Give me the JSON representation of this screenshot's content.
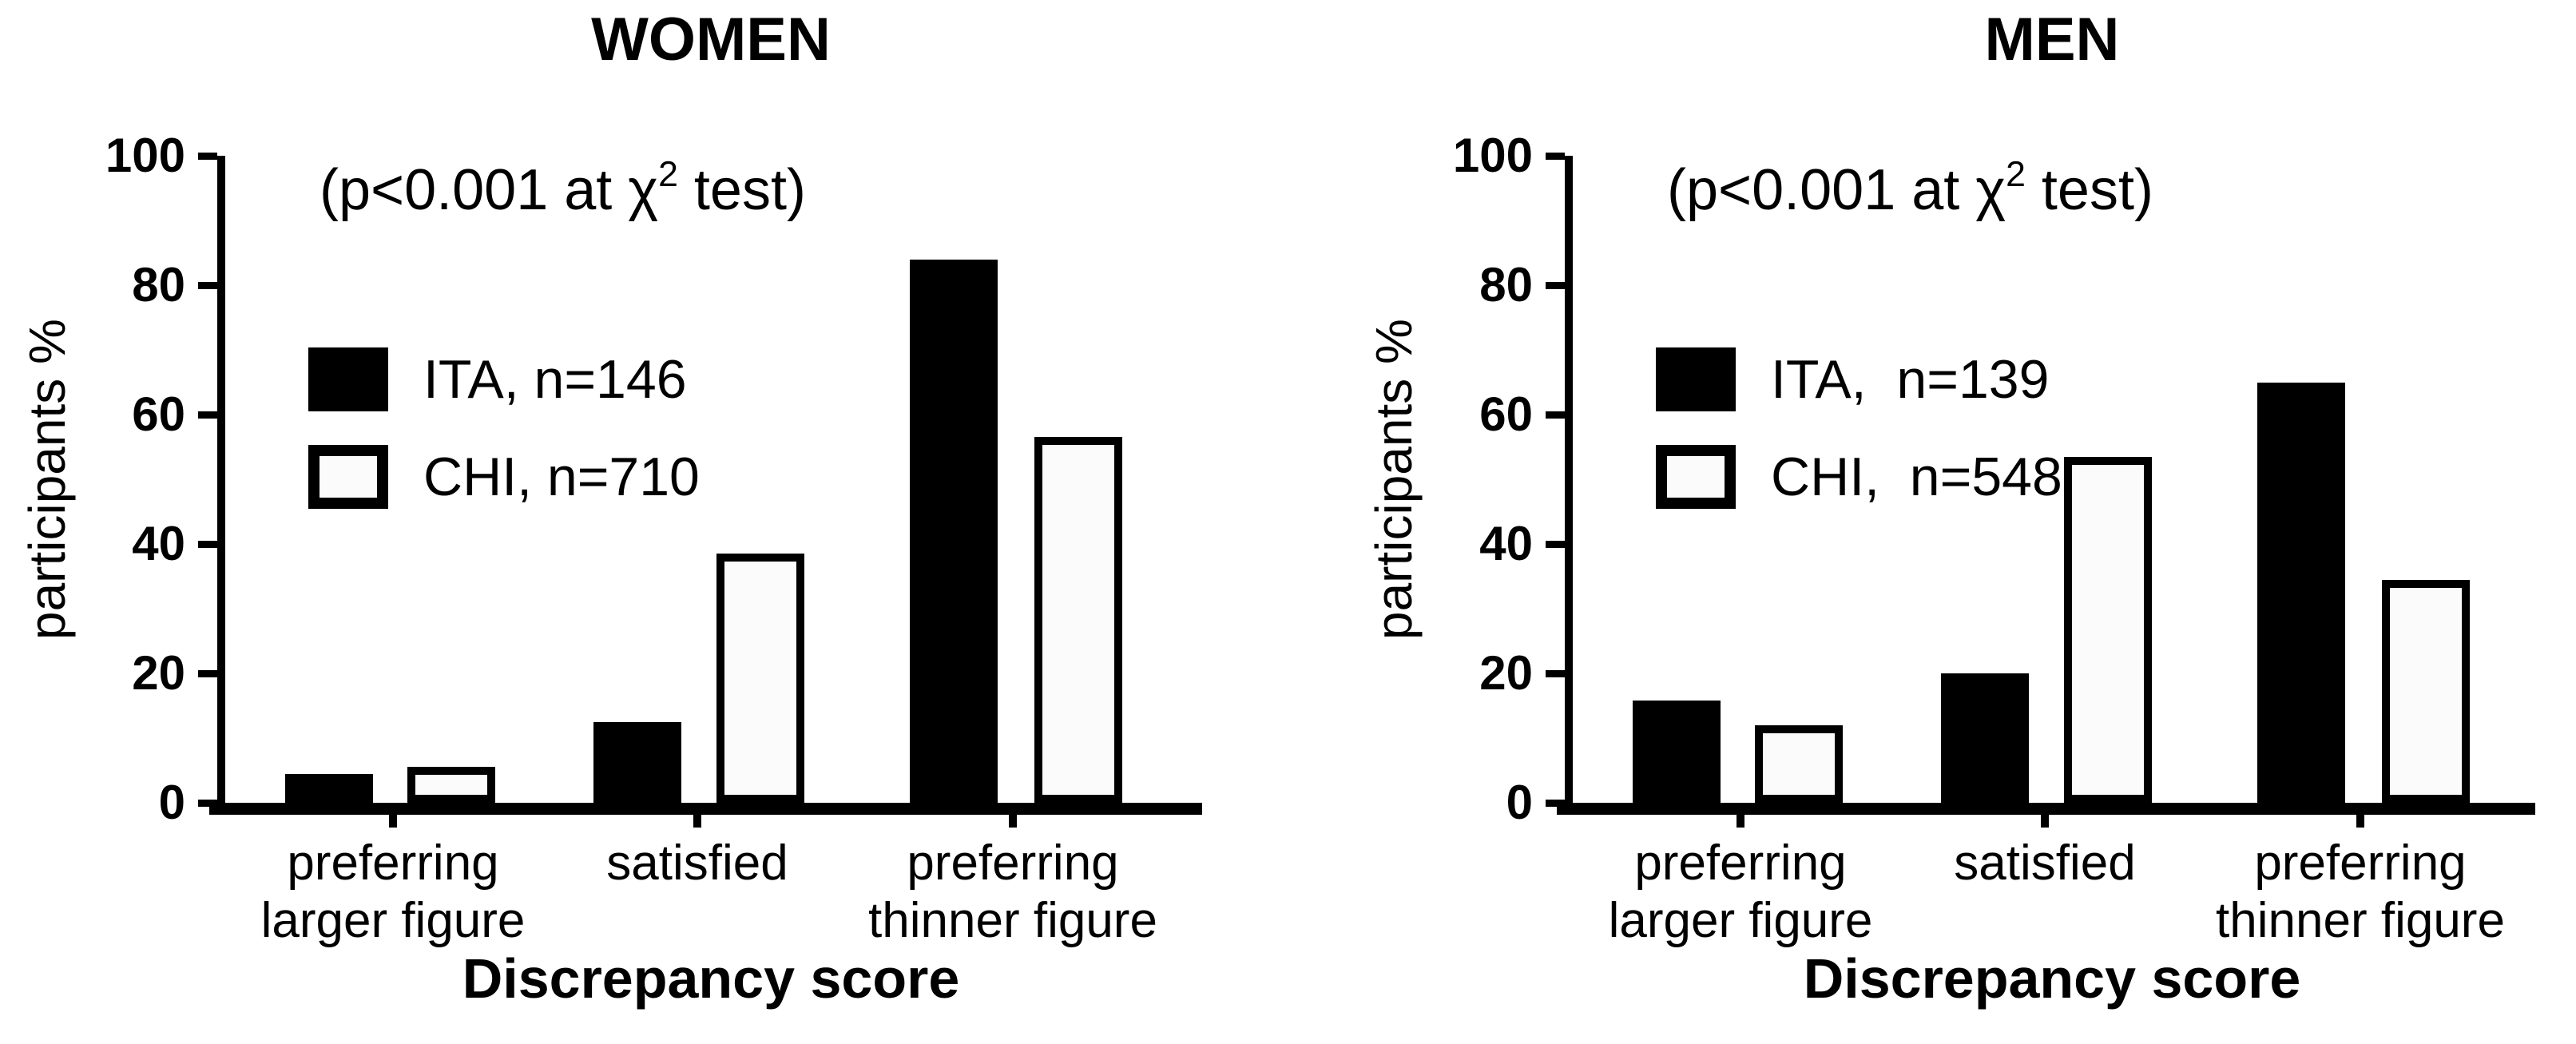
{
  "figure": {
    "background": "#ffffff",
    "ink_color": "#000000",
    "open_bar_fill": "#fbfbfb"
  },
  "chart_data": [
    {
      "type": "bar",
      "title": "WOMEN",
      "annotation": {
        "prefix": "(p<0.001 at χ",
        "sup": "2",
        "suffix": " test)"
      },
      "ylabel": "participants %",
      "xlabel": "Discrepancy score",
      "categories": [
        "preferring\nlarger figure",
        "satisfied",
        "preferring\nthinner figure"
      ],
      "series": [
        {
          "name": "ITA, n=146",
          "style": "filled",
          "values": [
            4.5,
            12.5,
            84
          ]
        },
        {
          "name": "CHI, n=710",
          "style": "open",
          "values": [
            5.5,
            38.5,
            56.5
          ]
        }
      ],
      "ylim": [
        0,
        100
      ],
      "yticks": [
        0,
        20,
        40,
        60,
        80,
        100
      ],
      "grid": false,
      "legend_position": "inside-upper-left"
    },
    {
      "type": "bar",
      "title": "MEN",
      "annotation": {
        "prefix": "(p<0.001 at χ",
        "sup": "2",
        "suffix": " test)"
      },
      "ylabel": "participants %",
      "xlabel": "Discrepancy score",
      "categories": [
        "preferring\nlarger figure",
        "satisfied",
        "preferring\nthinner figure"
      ],
      "series": [
        {
          "name": "ITA,  n=139",
          "style": "filled",
          "values": [
            15.8,
            20,
            65
          ]
        },
        {
          "name": "CHI,  n=548",
          "style": "open",
          "values": [
            12,
            53.5,
            34.5
          ]
        }
      ],
      "ylim": [
        0,
        100
      ],
      "yticks": [
        0,
        20,
        40,
        60,
        80,
        100
      ],
      "grid": false,
      "legend_position": "inside-upper-left"
    }
  ]
}
